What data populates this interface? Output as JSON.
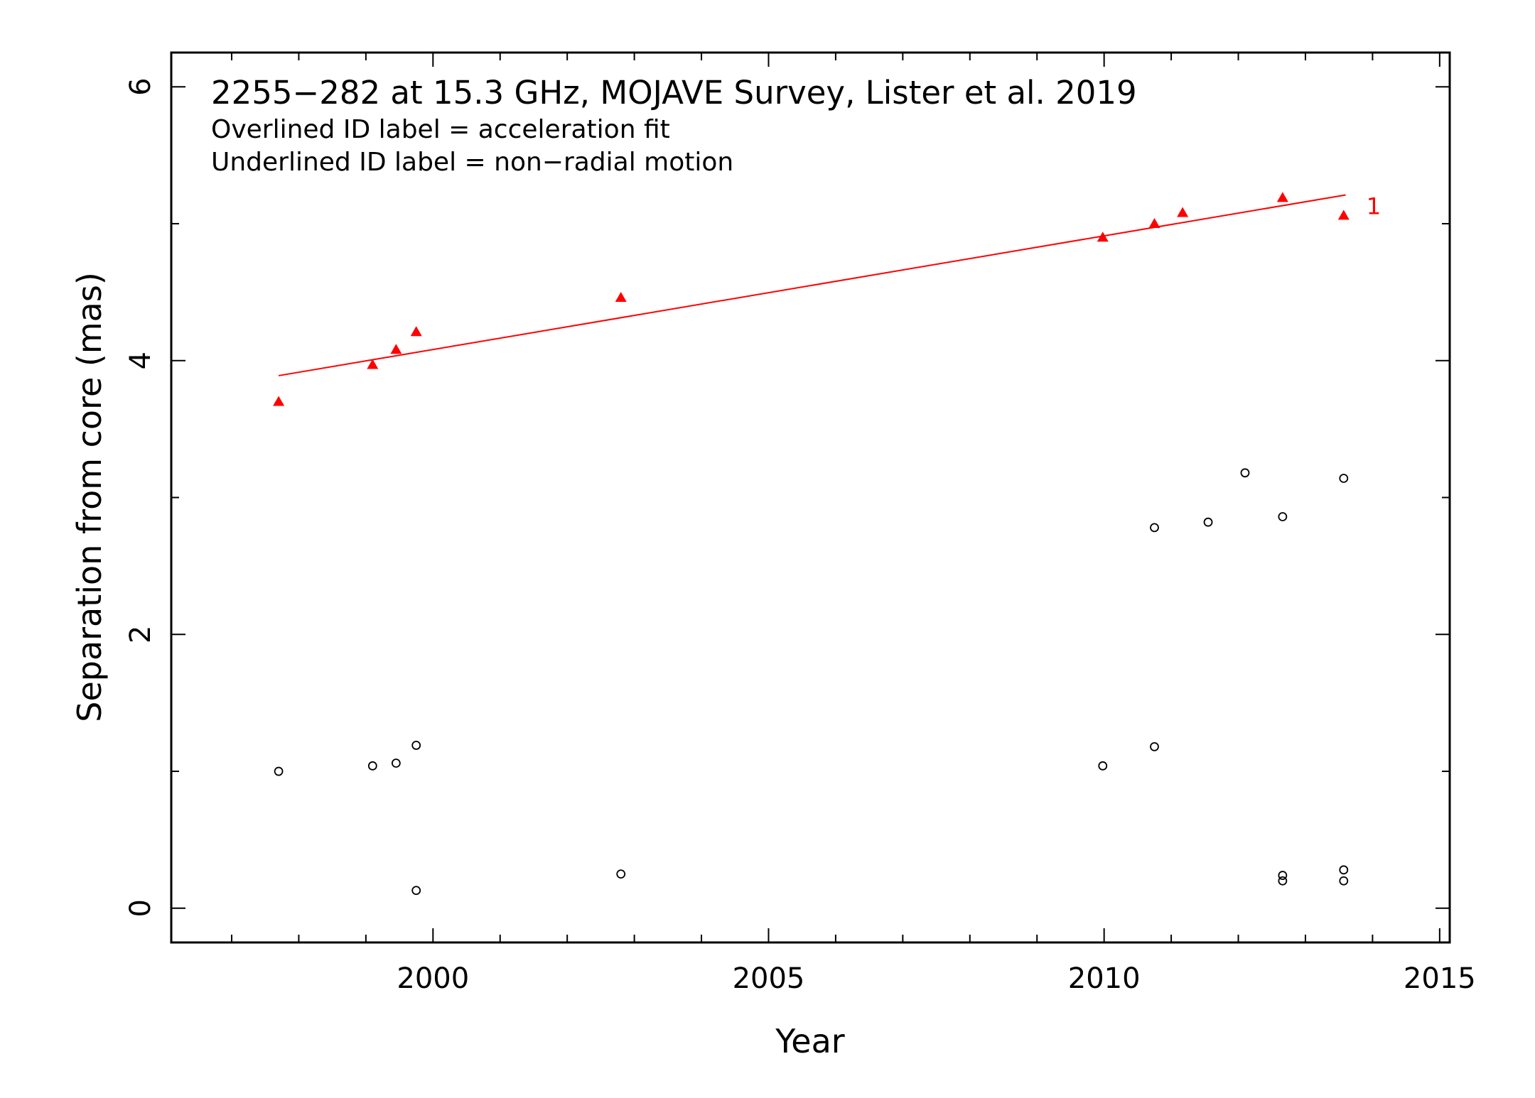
{
  "chart_data": {
    "type": "scatter",
    "title": "2255−282 at 15.3 GHz, MOJAVE Survey, Lister et al. 2019",
    "annotations": [
      "Overlined ID label = acceleration fit",
      "Underlined ID label = non−radial motion"
    ],
    "xlabel": "Year",
    "ylabel": "Separation from core (mas)",
    "xlim": [
      1996.1,
      2015.15
    ],
    "ylim": [
      -0.25,
      6.25
    ],
    "x_ticks": [
      2000,
      2005,
      2010,
      2015
    ],
    "x_tick_labels": [
      "2000",
      "2005",
      "2010",
      "2015"
    ],
    "x_minor_step": 1,
    "y_ticks": [
      0,
      2,
      4,
      6
    ],
    "y_tick_labels": [
      "0",
      "2",
      "4",
      "6"
    ],
    "y_minor_step": 1,
    "grid": false,
    "series": [
      {
        "name": "1",
        "marker": "filled-triangle",
        "color": "#ff0000",
        "x": [
          1997.7,
          1999.1,
          1999.45,
          1999.75,
          2002.8,
          2009.98,
          2010.75,
          2011.17,
          2012.66,
          2013.57
        ],
        "y": [
          3.7,
          3.97,
          4.08,
          4.21,
          4.46,
          4.9,
          5.0,
          5.08,
          5.19,
          5.06
        ],
        "fit": {
          "x": [
            1997.7,
            2013.6
          ],
          "y": [
            3.89,
            5.21
          ]
        }
      },
      {
        "marker": "open-circle",
        "color": "#000000",
        "x": [
          1997.7,
          1999.1,
          1999.45,
          1999.75,
          1999.75,
          2002.8,
          2009.98,
          2010.75,
          2010.75,
          2011.55,
          2012.1,
          2012.66,
          2012.66,
          2012.66,
          2013.57,
          2013.57,
          2013.57
        ],
        "y": [
          1.0,
          1.04,
          1.06,
          1.19,
          0.13,
          0.25,
          1.04,
          1.18,
          2.78,
          2.82,
          3.18,
          2.86,
          0.24,
          0.2,
          3.14,
          0.28,
          0.2
        ]
      }
    ]
  }
}
